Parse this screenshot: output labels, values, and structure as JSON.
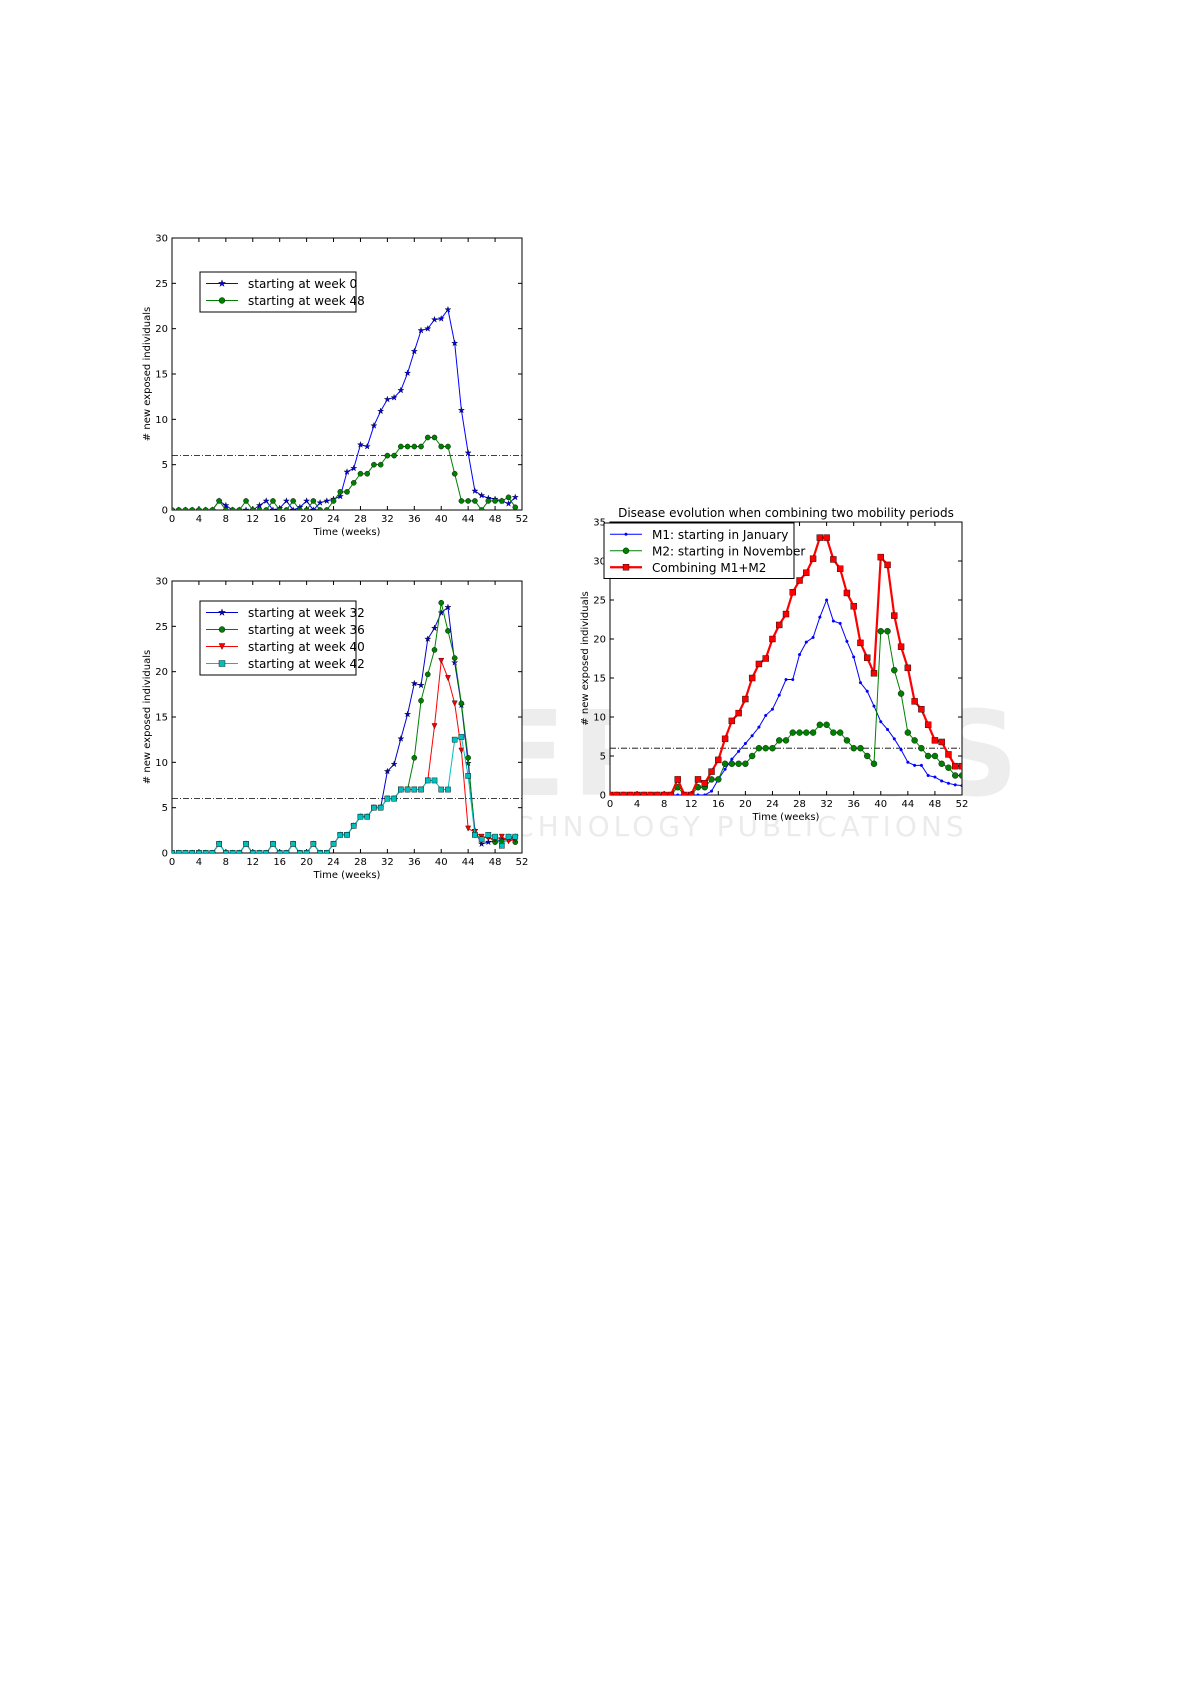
{
  "chart_data": [
    {
      "type": "line",
      "xlabel": "Time (weeks)",
      "ylabel": "# new exposed individuals",
      "x": [
        0,
        1,
        2,
        3,
        4,
        5,
        6,
        7,
        8,
        9,
        10,
        11,
        12,
        13,
        14,
        15,
        16,
        17,
        18,
        19,
        20,
        21,
        22,
        23,
        24,
        25,
        26,
        27,
        28,
        29,
        30,
        31,
        32,
        33,
        34,
        35,
        36,
        37,
        38,
        39,
        40,
        41,
        42,
        43,
        44,
        45,
        46,
        47,
        48,
        49,
        50,
        51
      ],
      "xlim": [
        0,
        52
      ],
      "xticks": [
        0,
        4,
        8,
        12,
        16,
        20,
        24,
        28,
        32,
        36,
        40,
        44,
        48,
        52
      ],
      "ylim": [
        0,
        30
      ],
      "yticks": [
        0,
        5,
        10,
        15,
        20,
        25,
        30
      ],
      "hline": 6,
      "legend": "upper left",
      "series": [
        {
          "name": "starting at week 0",
          "color": "#0000ff",
          "marker": "*",
          "values": [
            0,
            0,
            0,
            0,
            0,
            0,
            0,
            1,
            0.5,
            0,
            0,
            0,
            0,
            0.5,
            1,
            0,
            0.2,
            1,
            0,
            0.3,
            1,
            0,
            0.8,
            1,
            1.2,
            1.5,
            4.2,
            4.6,
            7.2,
            7,
            9.3,
            10.9,
            12.2,
            12.4,
            13.2,
            15.1,
            17.5,
            19.8,
            20,
            21,
            21.1,
            22.1,
            18.4,
            11,
            6.3,
            2.1,
            1.6,
            1.3,
            1.2,
            1,
            0.7,
            1.4
          ]
        },
        {
          "name": "starting at week 48",
          "color": "#008000",
          "marker": "o",
          "values": [
            0,
            0,
            0,
            0,
            0,
            0,
            0,
            1,
            0,
            0,
            0,
            1,
            0,
            0,
            0,
            1,
            0,
            0,
            1,
            0,
            0,
            1,
            0,
            0,
            1,
            2,
            2,
            3,
            4,
            4,
            5,
            5,
            6,
            6,
            7,
            7,
            7,
            7,
            8,
            8,
            7,
            7,
            4,
            1,
            1,
            1,
            0,
            1,
            1,
            1,
            1.4,
            0.3
          ]
        }
      ]
    },
    {
      "type": "line",
      "xlabel": "Time (weeks)",
      "ylabel": "# new exposed individuals",
      "x": [
        0,
        1,
        2,
        3,
        4,
        5,
        6,
        7,
        8,
        9,
        10,
        11,
        12,
        13,
        14,
        15,
        16,
        17,
        18,
        19,
        20,
        21,
        22,
        23,
        24,
        25,
        26,
        27,
        28,
        29,
        30,
        31,
        32,
        33,
        34,
        35,
        36,
        37,
        38,
        39,
        40,
        41,
        42,
        43,
        44,
        45,
        46,
        47,
        48,
        49,
        50,
        51
      ],
      "xlim": [
        0,
        52
      ],
      "xticks": [
        0,
        4,
        8,
        12,
        16,
        20,
        24,
        28,
        32,
        36,
        40,
        44,
        48,
        52
      ],
      "ylim": [
        0,
        30
      ],
      "yticks": [
        0,
        5,
        10,
        15,
        20,
        25,
        30
      ],
      "hline": 6,
      "legend": "upper left",
      "series": [
        {
          "name": "starting at week 32",
          "color": "#0000cc",
          "marker": "*",
          "values": [
            0,
            0,
            0,
            0,
            0,
            0,
            0,
            1,
            0,
            0,
            0,
            1,
            0,
            0,
            0,
            1,
            0,
            0,
            1,
            0,
            0,
            1,
            0,
            0,
            1,
            2,
            2,
            3,
            4,
            4,
            5,
            5,
            9,
            9.8,
            12.6,
            15.3,
            18.7,
            18.5,
            23.6,
            24.8,
            26.5,
            27.1,
            21,
            16.3,
            9.9,
            2.5,
            1,
            1.2,
            1.3,
            1.5,
            1.5,
            1.8
          ]
        },
        {
          "name": "starting at week 36",
          "color": "#008000",
          "marker": "o",
          "values": [
            0,
            0,
            0,
            0,
            0,
            0,
            0,
            1,
            0,
            0,
            0,
            1,
            0,
            0,
            0,
            1,
            0,
            0,
            1,
            0,
            0,
            1,
            0,
            0,
            1,
            2,
            2,
            3,
            4,
            4,
            5,
            5,
            6,
            6,
            7,
            7,
            10.5,
            16.8,
            19.7,
            22.4,
            27.6,
            24.5,
            21.5,
            16.5,
            10.5,
            2,
            1.6,
            1.8,
            1.2,
            1.3,
            1.8,
            1.2
          ]
        },
        {
          "name": "starting at week 40",
          "color": "#ff0000",
          "marker": "v",
          "values": [
            0,
            0,
            0,
            0,
            0,
            0,
            0,
            1,
            0,
            0,
            0,
            1,
            0,
            0,
            0,
            1,
            0,
            0,
            1,
            0,
            0,
            1,
            0,
            0,
            1,
            2,
            2,
            3,
            4,
            4,
            5,
            5,
            6,
            6,
            7,
            7,
            7,
            7,
            8,
            14,
            21.2,
            19.3,
            16.5,
            11.3,
            2.7,
            2.3,
            1.8,
            1.7,
            1.5,
            1.8,
            1.3,
            1.5
          ]
        },
        {
          "name": "starting at week 42",
          "color": "#00bfbf",
          "marker": "s",
          "values": [
            0,
            0,
            0,
            0,
            0,
            0,
            0,
            1,
            0,
            0,
            0,
            1,
            0,
            0,
            0,
            1,
            0,
            0,
            1,
            0,
            0,
            1,
            0,
            0,
            1,
            2,
            2,
            3,
            4,
            4,
            5,
            5,
            6,
            6,
            7,
            7,
            7,
            7,
            8,
            8,
            7,
            7,
            12.5,
            12.8,
            8.5,
            2,
            1.5,
            2,
            1.8,
            0.8,
            1.8,
            1.8
          ]
        }
      ]
    },
    {
      "type": "line",
      "title": "Disease evolution when combining two mobility periods",
      "xlabel": "Time (weeks)",
      "ylabel": "# new exposed individuals",
      "x": [
        0,
        1,
        2,
        3,
        4,
        5,
        6,
        7,
        8,
        9,
        10,
        11,
        12,
        13,
        14,
        15,
        16,
        17,
        18,
        19,
        20,
        21,
        22,
        23,
        24,
        25,
        26,
        27,
        28,
        29,
        30,
        31,
        32,
        33,
        34,
        35,
        36,
        37,
        38,
        39,
        40,
        41,
        42,
        43,
        44,
        45,
        46,
        47,
        48,
        49,
        50,
        51,
        52
      ],
      "xlim": [
        0,
        52
      ],
      "xticks": [
        0,
        4,
        8,
        12,
        16,
        20,
        24,
        28,
        32,
        36,
        40,
        44,
        48,
        52
      ],
      "ylim": [
        0,
        35
      ],
      "yticks": [
        0,
        5,
        10,
        15,
        20,
        25,
        30,
        35
      ],
      "hline": 6,
      "legend": "upper left",
      "series": [
        {
          "name": "M1: starting in January",
          "color": "#0000ff",
          "marker": ".",
          "values": [
            0,
            0,
            0,
            0,
            0,
            0,
            0,
            0,
            0,
            0,
            0,
            0,
            0,
            0,
            0,
            0.5,
            2,
            3.3,
            4.6,
            5.6,
            6.6,
            7.6,
            8.7,
            10.2,
            11,
            12.8,
            14.8,
            14.8,
            18,
            19.6,
            20.2,
            22.8,
            25,
            22.3,
            22,
            19.7,
            17.7,
            14.4,
            13.3,
            11.4,
            9.4,
            8.4,
            7.2,
            5.8,
            4.2,
            3.8,
            3.8,
            2.5,
            2.3,
            1.8,
            1.5,
            1.3,
            1.2
          ]
        },
        {
          "name": "M2: starting in November",
          "color": "#008000",
          "marker": "o",
          "values": [
            0,
            0,
            0,
            0,
            0,
            0,
            0,
            0,
            0,
            0,
            1,
            0,
            0,
            1,
            1,
            2,
            2,
            4,
            4,
            4,
            4,
            5,
            6,
            6,
            6,
            7,
            7,
            8,
            8,
            8,
            8,
            9,
            9,
            8,
            8,
            7,
            6,
            6,
            5,
            4,
            21,
            21,
            16,
            13,
            8,
            7,
            6,
            5,
            5,
            4,
            3.5,
            2.5,
            2.5
          ]
        },
        {
          "name": "Combining M1+M2",
          "color": "#ff0000",
          "marker": "s",
          "values": [
            0,
            0,
            0,
            0,
            0,
            0,
            0,
            0,
            0,
            0,
            2,
            0,
            0,
            2,
            1.5,
            3,
            4.5,
            7.2,
            9.5,
            10.5,
            12.3,
            15,
            16.8,
            17.5,
            20,
            21.8,
            23.2,
            26,
            27.5,
            28.5,
            30.3,
            33,
            33,
            30.2,
            29,
            25.9,
            24.2,
            19.5,
            17.6,
            15.6,
            30.5,
            29.5,
            23,
            19,
            16.3,
            12,
            11,
            9,
            7,
            6.8,
            5.2,
            3.7,
            3.7
          ]
        }
      ]
    }
  ],
  "watermark": {
    "title": "SCITEPRESS",
    "subtitle": "SCIENCE AND TECHNOLOGY PUBLICATIONS"
  }
}
